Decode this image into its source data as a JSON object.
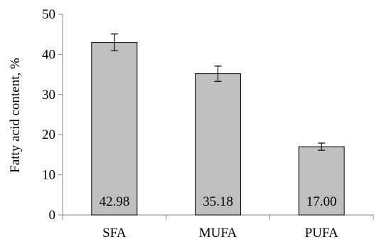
{
  "chart_data": {
    "type": "bar",
    "title": "",
    "xlabel": "",
    "ylabel": "Fatty acid  content, %",
    "ylim": [
      0,
      50
    ],
    "yticks": [
      0,
      10,
      20,
      30,
      40,
      50
    ],
    "categories": [
      "SFA",
      "MUFA",
      "PUFA"
    ],
    "values": [
      42.98,
      35.18,
      17.0
    ],
    "value_labels": [
      "42.98",
      "35.18",
      "17.00"
    ],
    "error": [
      2.1,
      1.9,
      0.9
    ],
    "grid": false,
    "legend": "none",
    "bar_color": "#bfbfbf",
    "bar_edge_color": "#000000"
  }
}
